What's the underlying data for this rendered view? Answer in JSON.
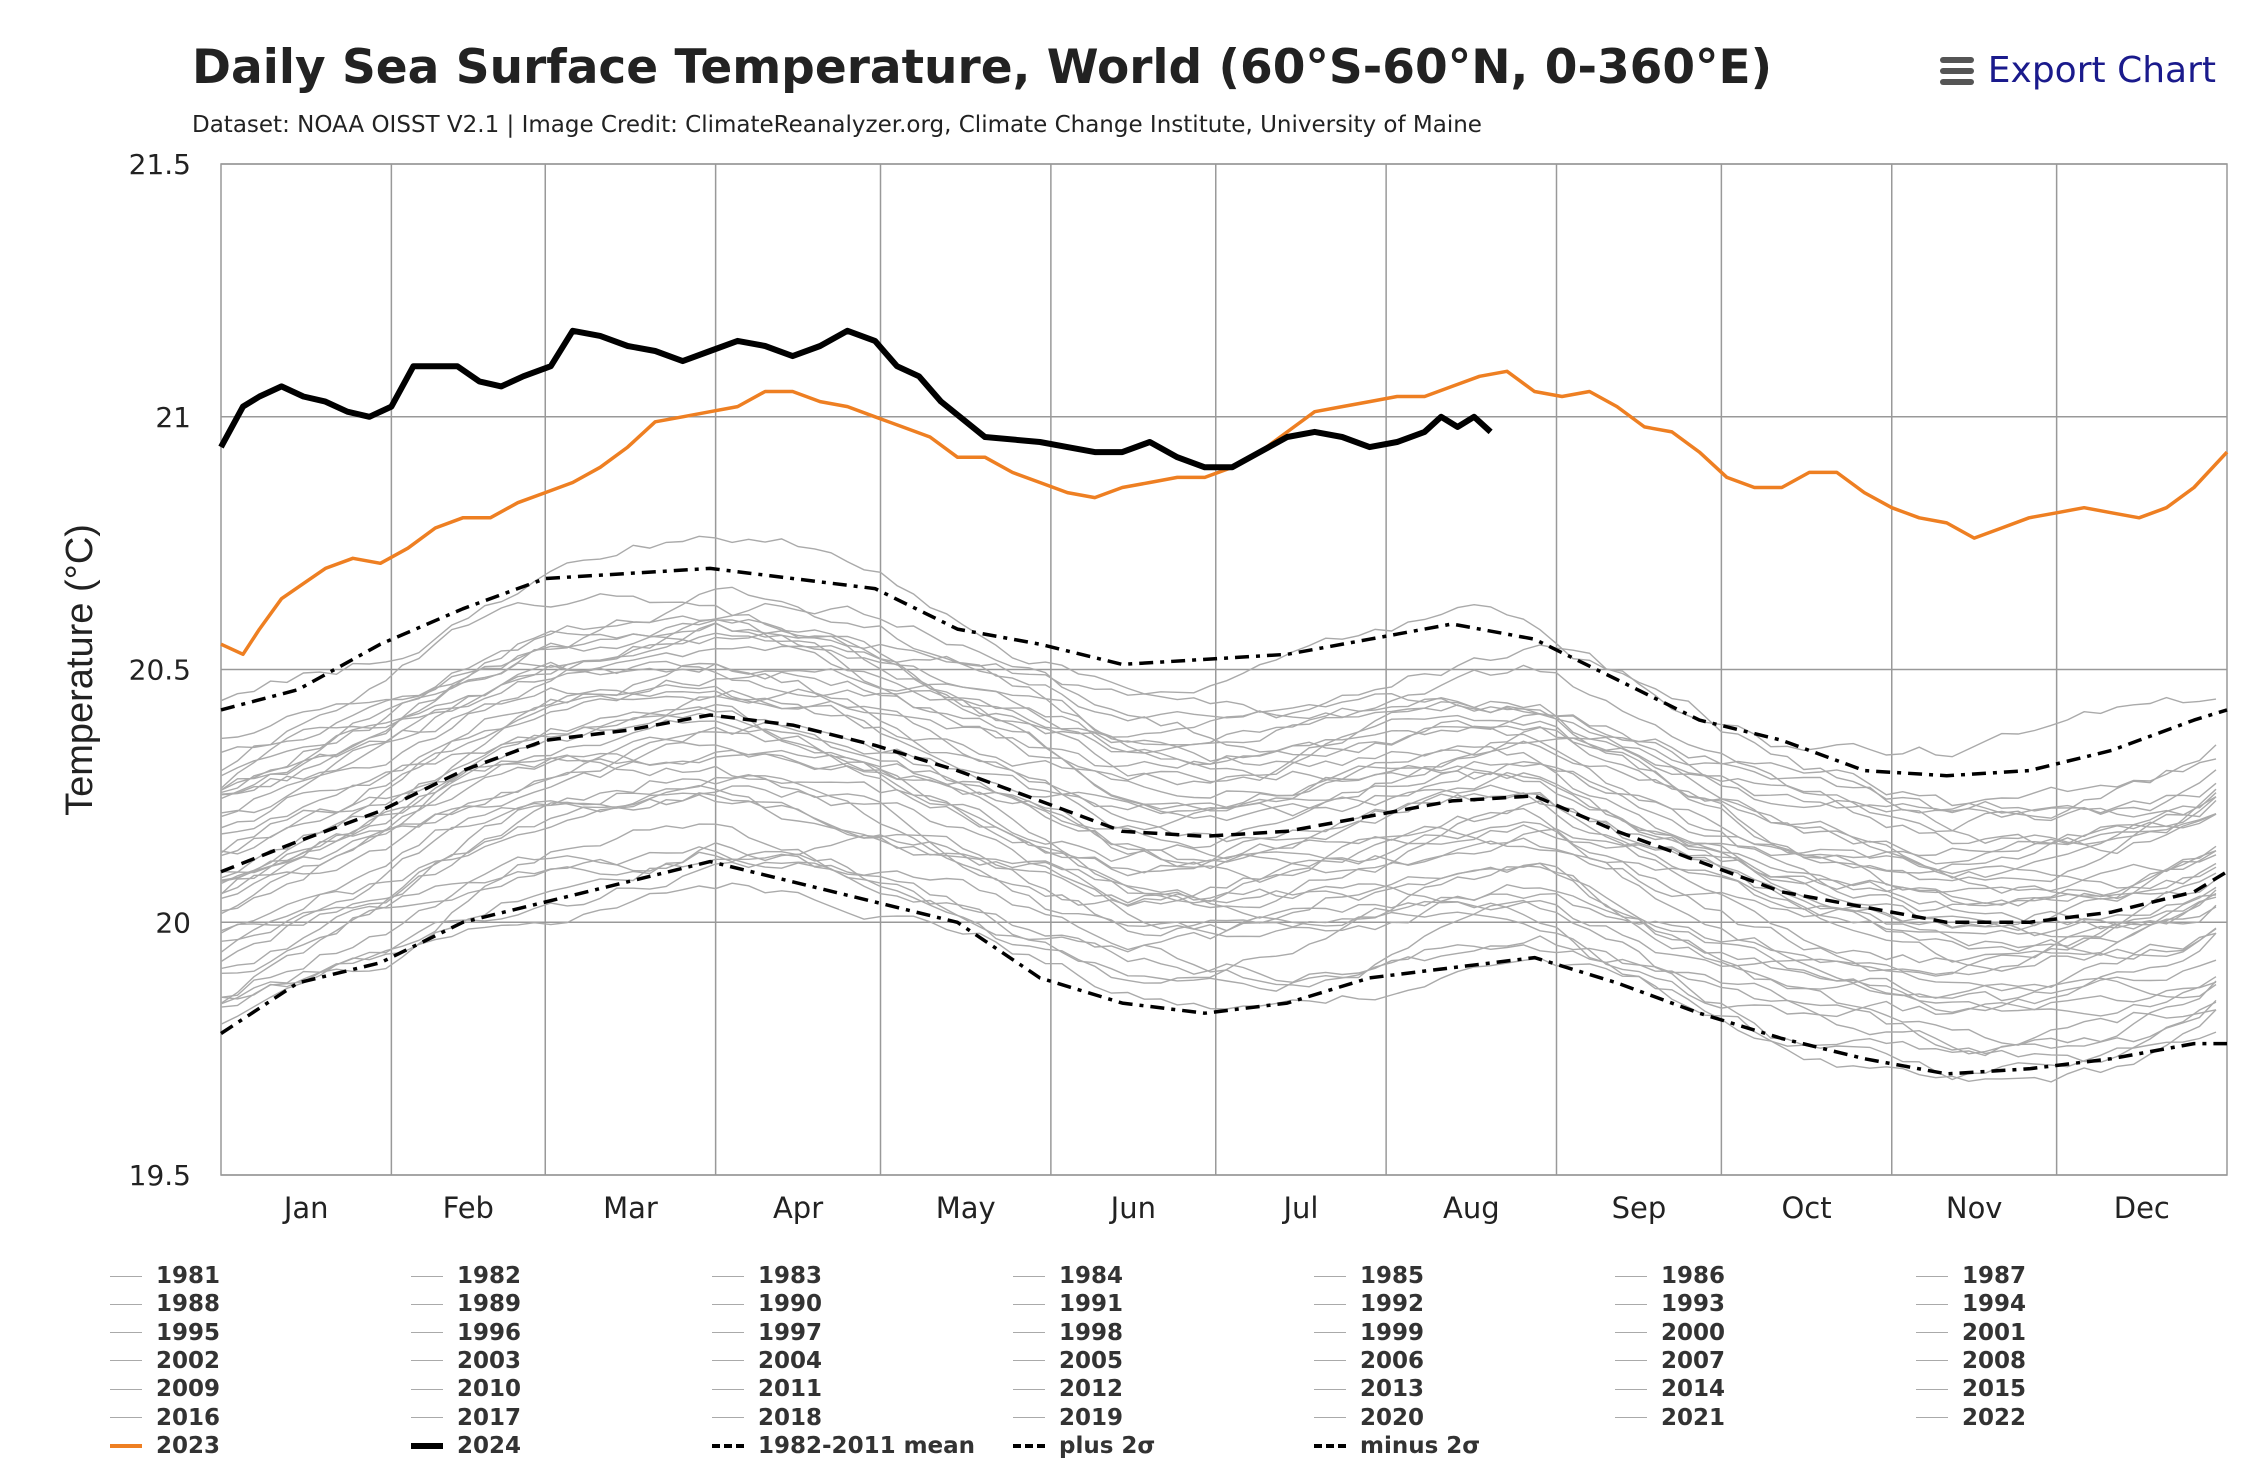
{
  "header": {
    "title": "Daily Sea Surface Temperature, World (60°S-60°N, 0-360°E)",
    "subtitle": "Dataset: NOAA OISST V2.1 | Image Credit: ClimateReanalyzer.org, Climate Change Institute, University of Maine",
    "export_label": "Export Chart",
    "export_icon": "hamburger-menu-icon"
  },
  "chart_data": {
    "type": "line",
    "title": "Daily Sea Surface Temperature, World (60°S-60°N, 0-360°E)",
    "ylabel": "Temperature (°C)",
    "ylim": [
      19.5,
      21.5
    ],
    "yticks": [
      "21.5",
      "21",
      "20.5",
      "20",
      "19.5"
    ],
    "ytick_values": [
      21.5,
      21,
      20.5,
      20,
      19.5
    ],
    "xlim": [
      1,
      366
    ],
    "months": [
      "Jan",
      "Feb",
      "Mar",
      "Apr",
      "May",
      "Jun",
      "Jul",
      "Aug",
      "Sep",
      "Oct",
      "Nov",
      "Dec"
    ],
    "grid": true,
    "legend_position": "bottom",
    "colors": {
      "2023": "#ee7f22",
      "2024": "#000000",
      "years": "#aaaaaa",
      "stats": "#000000"
    },
    "series": [
      {
        "name": "2024",
        "style": "thick-black",
        "x": [
          1,
          5,
          8,
          12,
          16,
          20,
          24,
          28,
          32,
          36,
          40,
          44,
          48,
          52,
          56,
          61,
          65,
          70,
          75,
          80,
          85,
          90,
          95,
          100,
          105,
          110,
          115,
          120,
          124,
          128,
          132,
          140,
          150,
          155,
          160,
          165,
          170,
          175,
          180,
          185,
          190,
          195,
          200,
          205,
          210,
          215,
          220,
          223,
          226,
          229,
          232
        ],
        "y": [
          20.94,
          21.02,
          21.04,
          21.06,
          21.04,
          21.03,
          21.01,
          21.0,
          21.02,
          21.1,
          21.1,
          21.1,
          21.07,
          21.06,
          21.08,
          21.1,
          21.17,
          21.16,
          21.14,
          21.13,
          21.11,
          21.13,
          21.15,
          21.14,
          21.12,
          21.14,
          21.17,
          21.15,
          21.1,
          21.08,
          21.03,
          20.96,
          20.95,
          20.94,
          20.93,
          20.93,
          20.95,
          20.92,
          20.9,
          20.9,
          20.93,
          20.96,
          20.97,
          20.96,
          20.94,
          20.95,
          20.97,
          21.0,
          20.98,
          21.0,
          20.97
        ]
      },
      {
        "name": "2023",
        "style": "orange",
        "x": [
          1,
          5,
          8,
          12,
          16,
          20,
          25,
          30,
          35,
          40,
          45,
          50,
          55,
          60,
          65,
          70,
          75,
          80,
          85,
          90,
          95,
          100,
          105,
          110,
          115,
          120,
          125,
          130,
          135,
          140,
          145,
          150,
          155,
          160,
          165,
          170,
          175,
          180,
          185,
          190,
          195,
          200,
          205,
          210,
          215,
          220,
          225,
          230,
          235,
          240,
          245,
          250,
          255,
          260,
          265,
          270,
          275,
          280,
          285,
          290,
          295,
          300,
          305,
          310,
          315,
          320,
          325,
          330,
          335,
          340,
          345,
          350,
          355,
          360,
          366
        ],
        "y": [
          20.55,
          20.53,
          20.58,
          20.64,
          20.67,
          20.7,
          20.72,
          20.71,
          20.74,
          20.78,
          20.8,
          20.8,
          20.83,
          20.85,
          20.87,
          20.9,
          20.94,
          20.99,
          21.0,
          21.01,
          21.02,
          21.05,
          21.05,
          21.03,
          21.02,
          21.0,
          20.98,
          20.96,
          20.92,
          20.92,
          20.89,
          20.87,
          20.85,
          20.84,
          20.86,
          20.87,
          20.88,
          20.88,
          20.9,
          20.93,
          20.97,
          21.01,
          21.02,
          21.03,
          21.04,
          21.04,
          21.06,
          21.08,
          21.09,
          21.05,
          21.04,
          21.05,
          21.02,
          20.98,
          20.97,
          20.93,
          20.88,
          20.86,
          20.86,
          20.89,
          20.89,
          20.85,
          20.82,
          20.8,
          20.79,
          20.76,
          20.78,
          20.8,
          20.81,
          20.82,
          20.81,
          20.8,
          20.82,
          20.86,
          20.93
        ]
      },
      {
        "name": "1982-2011 mean",
        "style": "dashed",
        "x": [
          1,
          15,
          30,
          45,
          60,
          75,
          90,
          105,
          120,
          135,
          150,
          165,
          180,
          195,
          210,
          225,
          240,
          255,
          270,
          285,
          300,
          315,
          330,
          345,
          360,
          366
        ],
        "y": [
          20.1,
          20.16,
          20.22,
          20.3,
          20.36,
          20.38,
          20.41,
          20.39,
          20.35,
          20.3,
          20.24,
          20.18,
          20.17,
          20.18,
          20.21,
          20.24,
          20.25,
          20.18,
          20.12,
          20.06,
          20.03,
          20.0,
          20.0,
          20.02,
          20.06,
          20.1
        ]
      },
      {
        "name": "plus 2σ",
        "style": "dash-dot",
        "x": [
          1,
          15,
          30,
          45,
          60,
          75,
          90,
          105,
          120,
          135,
          150,
          165,
          180,
          195,
          210,
          225,
          240,
          255,
          270,
          285,
          300,
          315,
          330,
          345,
          360,
          366
        ],
        "y": [
          20.42,
          20.46,
          20.55,
          20.62,
          20.68,
          20.69,
          20.7,
          20.68,
          20.66,
          20.58,
          20.55,
          20.51,
          20.52,
          20.53,
          20.56,
          20.59,
          20.56,
          20.48,
          20.4,
          20.36,
          20.3,
          20.29,
          20.3,
          20.34,
          20.4,
          20.42
        ]
      },
      {
        "name": "minus 2σ",
        "style": "dash-dot",
        "x": [
          1,
          15,
          30,
          45,
          60,
          75,
          90,
          105,
          120,
          135,
          150,
          165,
          180,
          195,
          210,
          225,
          240,
          255,
          270,
          285,
          300,
          315,
          330,
          345,
          360,
          366
        ],
        "y": [
          19.78,
          19.88,
          19.92,
          20.0,
          20.04,
          20.08,
          20.12,
          20.08,
          20.04,
          20.0,
          19.89,
          19.84,
          19.82,
          19.84,
          19.89,
          19.91,
          19.93,
          19.88,
          19.82,
          19.77,
          19.73,
          19.7,
          19.71,
          19.73,
          19.76,
          19.76
        ]
      }
    ]
  },
  "legend": {
    "years": [
      "1981",
      "1982",
      "1983",
      "1984",
      "1985",
      "1986",
      "1987",
      "1988",
      "1989",
      "1990",
      "1991",
      "1992",
      "1993",
      "1994",
      "1995",
      "1996",
      "1997",
      "1998",
      "1999",
      "2000",
      "2001",
      "2002",
      "2003",
      "2004",
      "2005",
      "2006",
      "2007",
      "2008",
      "2009",
      "2010",
      "2011",
      "2012",
      "2013",
      "2014",
      "2015",
      "2016",
      "2017",
      "2018",
      "2019",
      "2020",
      "2021",
      "2022"
    ],
    "special": [
      {
        "label": "2023",
        "style": "orange"
      },
      {
        "label": "2024",
        "style": "thick-black"
      },
      {
        "label": "1982-2011 mean",
        "style": "dashed"
      },
      {
        "label": "plus 2σ",
        "style": "dash-dot"
      },
      {
        "label": "minus 2σ",
        "style": "dash-dot"
      }
    ]
  }
}
